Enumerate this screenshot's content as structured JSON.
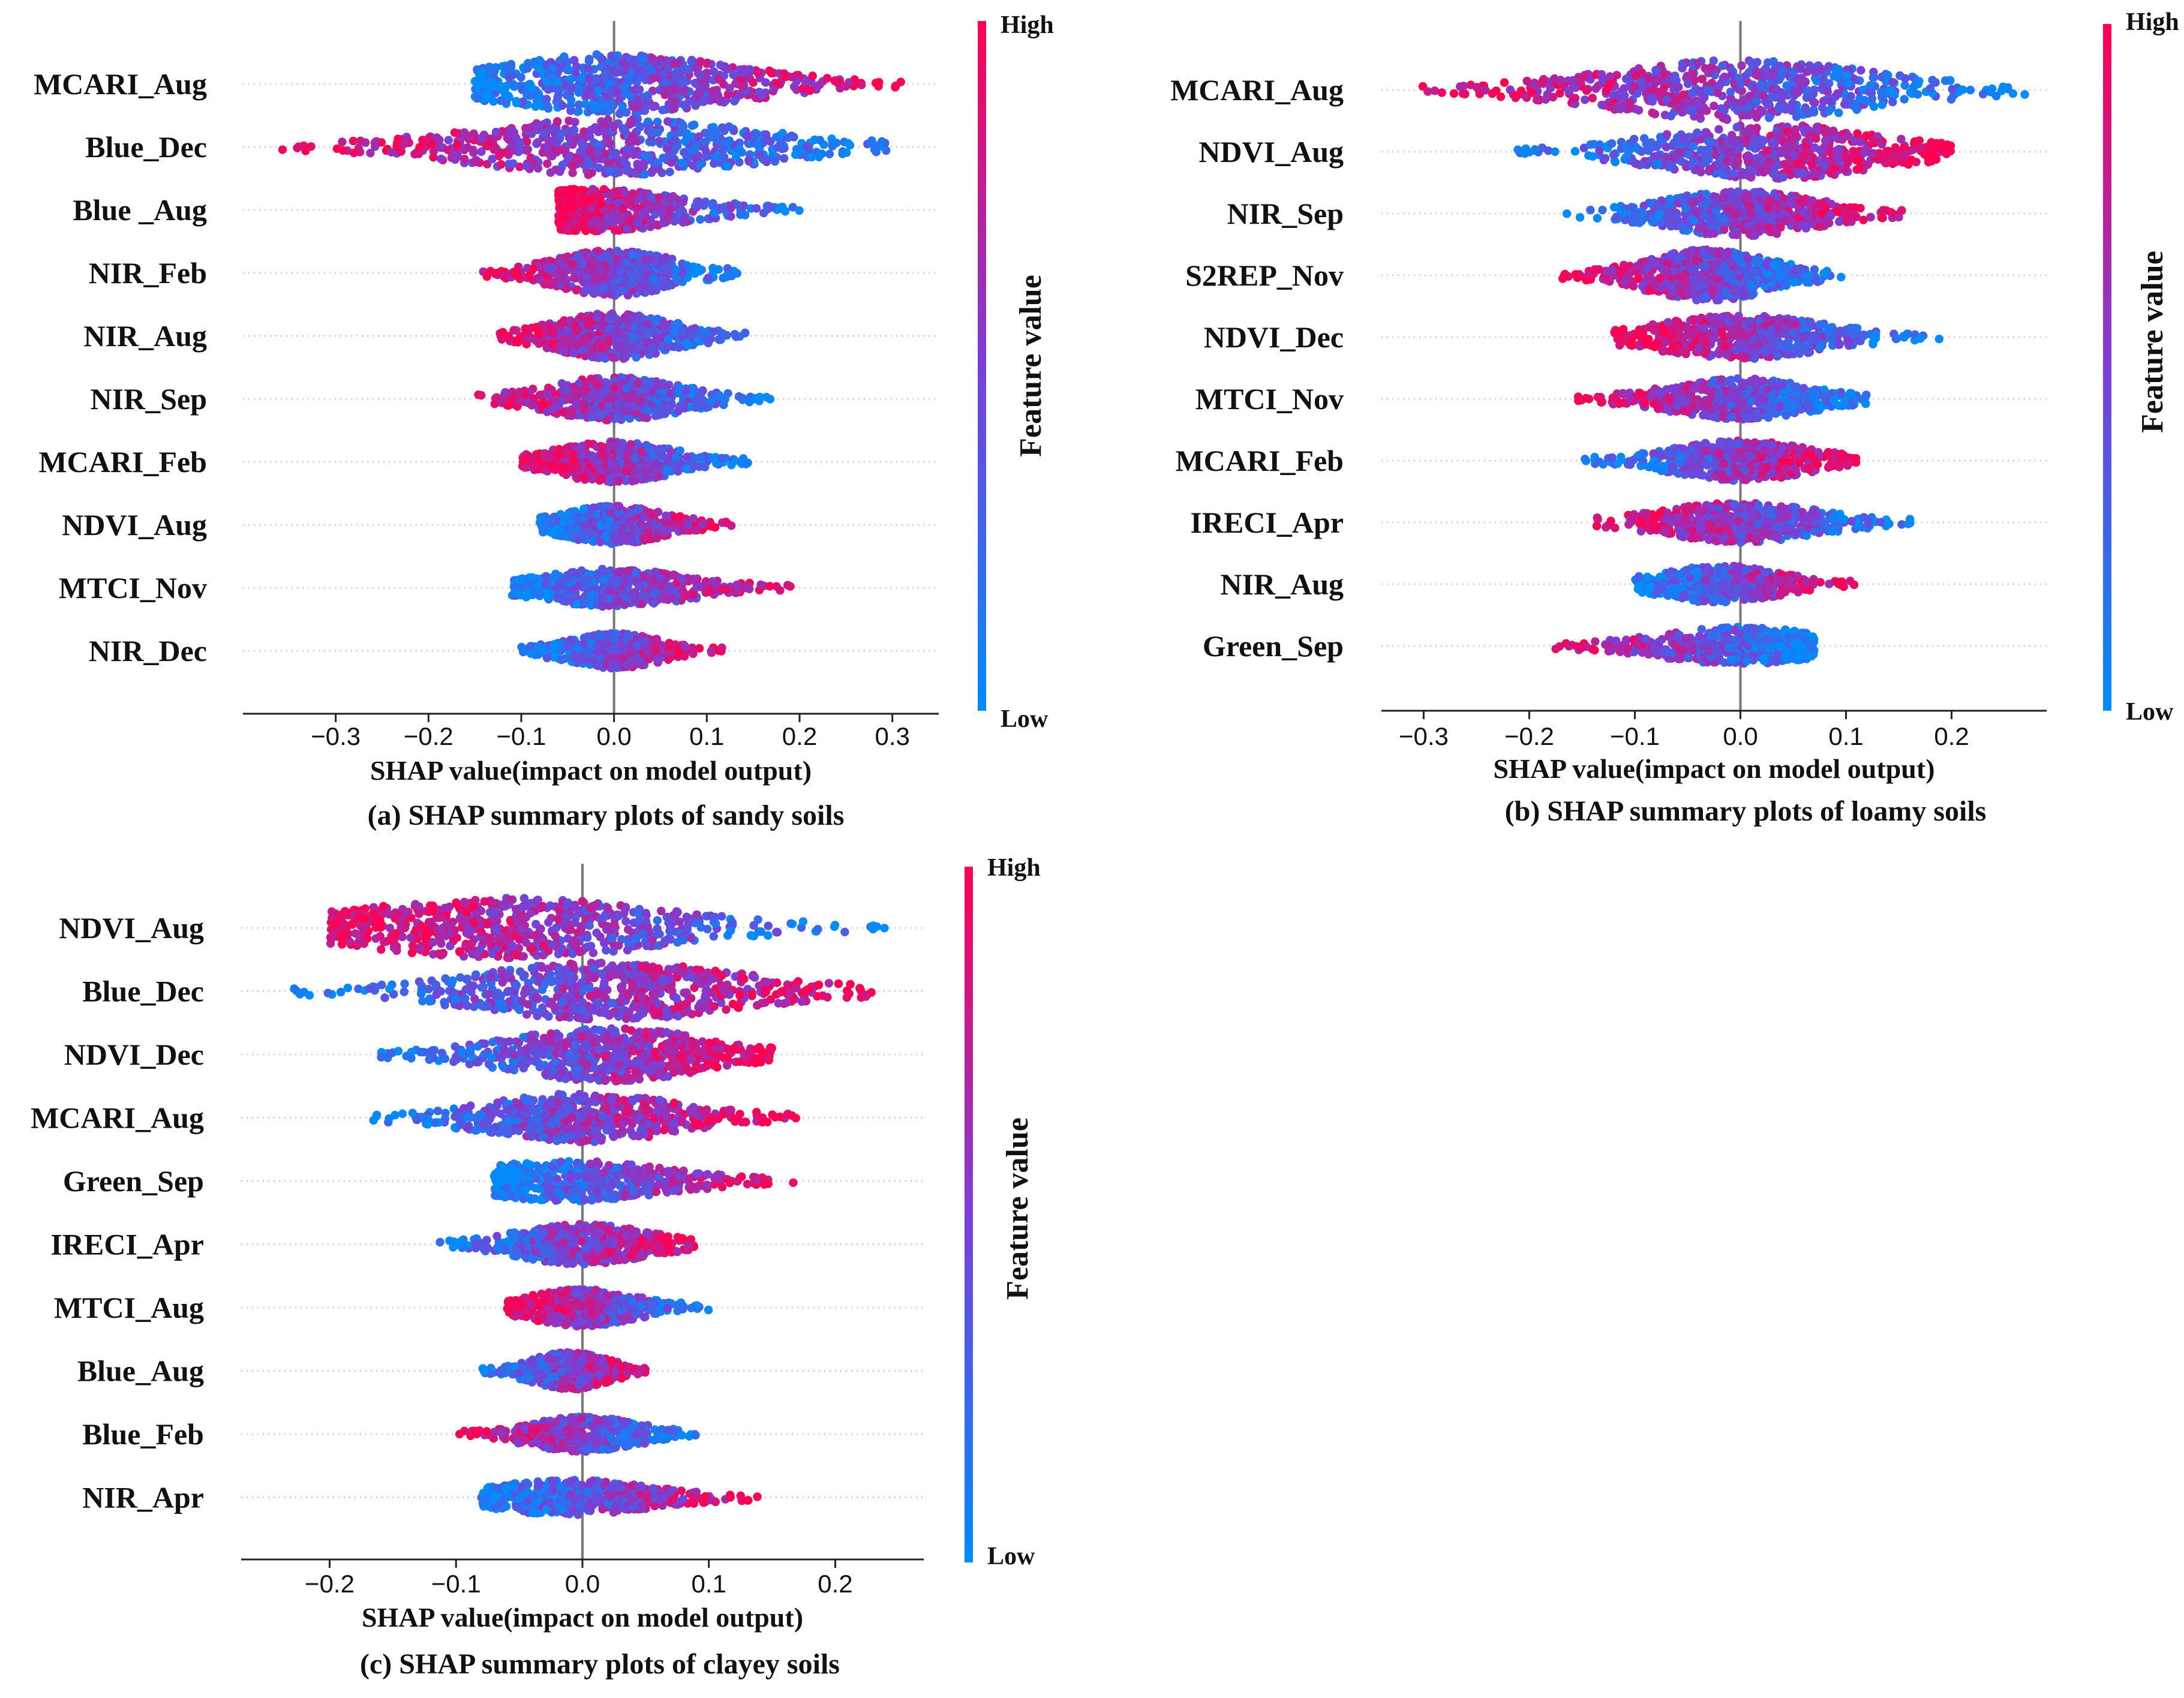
{
  "figure": {
    "colorbar": {
      "high_label": "High",
      "low_label": "Low",
      "axis_label": "Feature value",
      "high_color": "#ff0052",
      "mid_color": "#7b3fd6",
      "low_color": "#008bfb"
    }
  },
  "chart_data": [
    {
      "type": "scatter",
      "subtype": "shap-beeswarm",
      "caption": "(a) SHAP summary plots of sandy soils",
      "xlabel": "SHAP value(impact on model output)",
      "xlim": [
        -0.4,
        0.35
      ],
      "xticks": [
        -0.3,
        -0.2,
        -0.1,
        0.0,
        0.1,
        0.2,
        0.3
      ],
      "xtick_labels": [
        "−0.3",
        "−0.2",
        "−0.1",
        "0.0",
        "0.1",
        "0.2",
        "0.3"
      ],
      "features": [
        {
          "name": "MCARI_Aug",
          "min": -0.15,
          "max": 0.31,
          "center": 0.0,
          "high_side": "right",
          "density": 1.0
        },
        {
          "name": "Blue_Dec",
          "min": -0.36,
          "max": 0.3,
          "center": 0.0,
          "high_side": "left",
          "density": 0.95
        },
        {
          "name": "Blue _Aug",
          "min": -0.06,
          "max": 0.2,
          "center": -0.02,
          "high_side": "left",
          "density": 0.7
        },
        {
          "name": "NIR_Feb",
          "min": -0.15,
          "max": 0.14,
          "center": 0.0,
          "high_side": "left",
          "density": 0.75
        },
        {
          "name": "NIR_Aug",
          "min": -0.13,
          "max": 0.15,
          "center": 0.0,
          "high_side": "left",
          "density": 0.75
        },
        {
          "name": "NIR_Sep",
          "min": -0.16,
          "max": 0.17,
          "center": 0.0,
          "high_side": "left",
          "density": 0.7
        },
        {
          "name": "MCARI_Feb",
          "min": -0.1,
          "max": 0.15,
          "center": 0.0,
          "high_side": "left",
          "density": 0.65
        },
        {
          "name": "NDVI_Aug",
          "min": -0.08,
          "max": 0.13,
          "center": 0.0,
          "high_side": "right",
          "density": 0.6
        },
        {
          "name": "MTCI_Nov",
          "min": -0.11,
          "max": 0.19,
          "center": 0.0,
          "high_side": "right",
          "density": 0.6
        },
        {
          "name": "NIR_Dec",
          "min": -0.1,
          "max": 0.12,
          "center": 0.0,
          "high_side": "right",
          "density": 0.55
        }
      ]
    },
    {
      "type": "scatter",
      "subtype": "shap-beeswarm",
      "caption": "(b) SHAP summary plots of loamy soils",
      "xlabel": "SHAP value(impact on model output)",
      "xlim": [
        -0.34,
        0.29
      ],
      "xticks": [
        -0.3,
        -0.2,
        -0.1,
        0.0,
        0.1,
        0.2
      ],
      "xtick_labels": [
        "−0.3",
        "−0.2",
        "−0.1",
        "0.0",
        "0.1",
        "0.2"
      ],
      "features": [
        {
          "name": "MCARI_Aug",
          "min": -0.31,
          "max": 0.27,
          "center": 0.0,
          "high_side": "left",
          "density": 1.0
        },
        {
          "name": "NDVI_Aug",
          "min": -0.22,
          "max": 0.2,
          "center": 0.03,
          "high_side": "right",
          "density": 0.9
        },
        {
          "name": "NIR_Sep",
          "min": -0.17,
          "max": 0.17,
          "center": 0.0,
          "high_side": "right",
          "density": 0.75
        },
        {
          "name": "S2REP_Nov",
          "min": -0.17,
          "max": 0.1,
          "center": -0.03,
          "high_side": "left",
          "density": 0.85
        },
        {
          "name": "NDVI_Dec",
          "min": -0.12,
          "max": 0.19,
          "center": 0.0,
          "high_side": "left",
          "density": 0.7
        },
        {
          "name": "MTCI_Nov",
          "min": -0.16,
          "max": 0.12,
          "center": 0.0,
          "high_side": "left",
          "density": 0.65
        },
        {
          "name": "MCARI_Feb",
          "min": -0.15,
          "max": 0.11,
          "center": 0.0,
          "high_side": "right",
          "density": 0.65
        },
        {
          "name": "IRECI_Apr",
          "min": -0.14,
          "max": 0.17,
          "center": 0.0,
          "high_side": "left",
          "density": 0.65
        },
        {
          "name": "NIR_Aug",
          "min": -0.1,
          "max": 0.11,
          "center": -0.02,
          "high_side": "right",
          "density": 0.6
        },
        {
          "name": "Green_Sep",
          "min": -0.18,
          "max": 0.07,
          "center": 0.0,
          "high_side": "left",
          "density": 0.6
        }
      ]
    },
    {
      "type": "scatter",
      "subtype": "shap-beeswarm",
      "caption": "(c) SHAP summary plots of clayey soils",
      "xlabel": "SHAP value(impact on model output)",
      "xlim": [
        -0.27,
        0.27
      ],
      "xticks": [
        -0.2,
        -0.1,
        0.0,
        0.1,
        0.2
      ],
      "xtick_labels": [
        "−0.2",
        "−0.1",
        "0.0",
        "0.1",
        "0.2"
      ],
      "features": [
        {
          "name": "NDVI_Aug",
          "min": -0.2,
          "max": 0.24,
          "center": -0.06,
          "high_side": "left",
          "density": 1.0
        },
        {
          "name": "Blue_Dec",
          "min": -0.24,
          "max": 0.23,
          "center": 0.02,
          "high_side": "right",
          "density": 0.95
        },
        {
          "name": "NDVI_Dec",
          "min": -0.16,
          "max": 0.15,
          "center": 0.02,
          "high_side": "right",
          "density": 0.9
        },
        {
          "name": "MCARI_Aug",
          "min": -0.18,
          "max": 0.17,
          "center": 0.0,
          "high_side": "right",
          "density": 0.8
        },
        {
          "name": "Green_Sep",
          "min": -0.07,
          "max": 0.17,
          "center": -0.01,
          "high_side": "right",
          "density": 0.65
        },
        {
          "name": "IRECI_Apr",
          "min": -0.12,
          "max": 0.1,
          "center": 0.0,
          "high_side": "right",
          "density": 0.65
        },
        {
          "name": "MTCI_Aug",
          "min": -0.06,
          "max": 0.1,
          "center": 0.0,
          "high_side": "left",
          "density": 0.6
        },
        {
          "name": "Blue_Aug",
          "min": -0.08,
          "max": 0.05,
          "center": -0.01,
          "high_side": "right",
          "density": 0.6
        },
        {
          "name": "Blue_Feb",
          "min": -0.1,
          "max": 0.09,
          "center": 0.0,
          "high_side": "left",
          "density": 0.55
        },
        {
          "name": "NIR_Apr",
          "min": -0.08,
          "max": 0.14,
          "center": -0.01,
          "high_side": "right",
          "density": 0.55
        }
      ]
    }
  ]
}
